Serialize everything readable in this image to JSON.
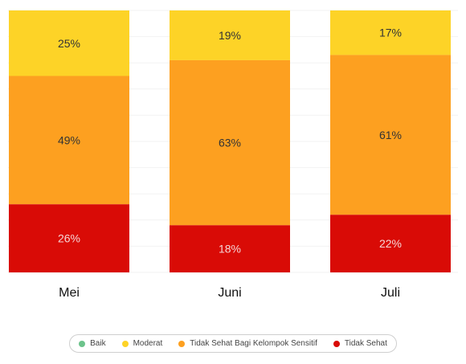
{
  "chart_data": {
    "type": "bar",
    "stacked": true,
    "normalized_percent": true,
    "categories": [
      "Mei",
      "Juni",
      "Juli"
    ],
    "series": [
      {
        "name": "Baik",
        "color": "#6cc38b",
        "values": [
          0,
          0,
          0
        ],
        "labels": [
          "",
          "",
          ""
        ]
      },
      {
        "name": "Moderat",
        "color": "#fdd327",
        "values": [
          25,
          19,
          17
        ],
        "labels": [
          "25%",
          "19%",
          "17%"
        ]
      },
      {
        "name": "Tidak Sehat Bagi Kelompok Sensitif",
        "color": "#fda020",
        "values": [
          49,
          63,
          61
        ],
        "labels": [
          "49%",
          "63%",
          "61%"
        ]
      },
      {
        "name": "Tidak Sehat",
        "color": "#d90b06",
        "values": [
          26,
          18,
          22
        ],
        "labels": [
          "26%",
          "18%",
          "22%"
        ]
      }
    ],
    "ylim": [
      0,
      100
    ],
    "grid": true,
    "legend_position": "bottom"
  }
}
